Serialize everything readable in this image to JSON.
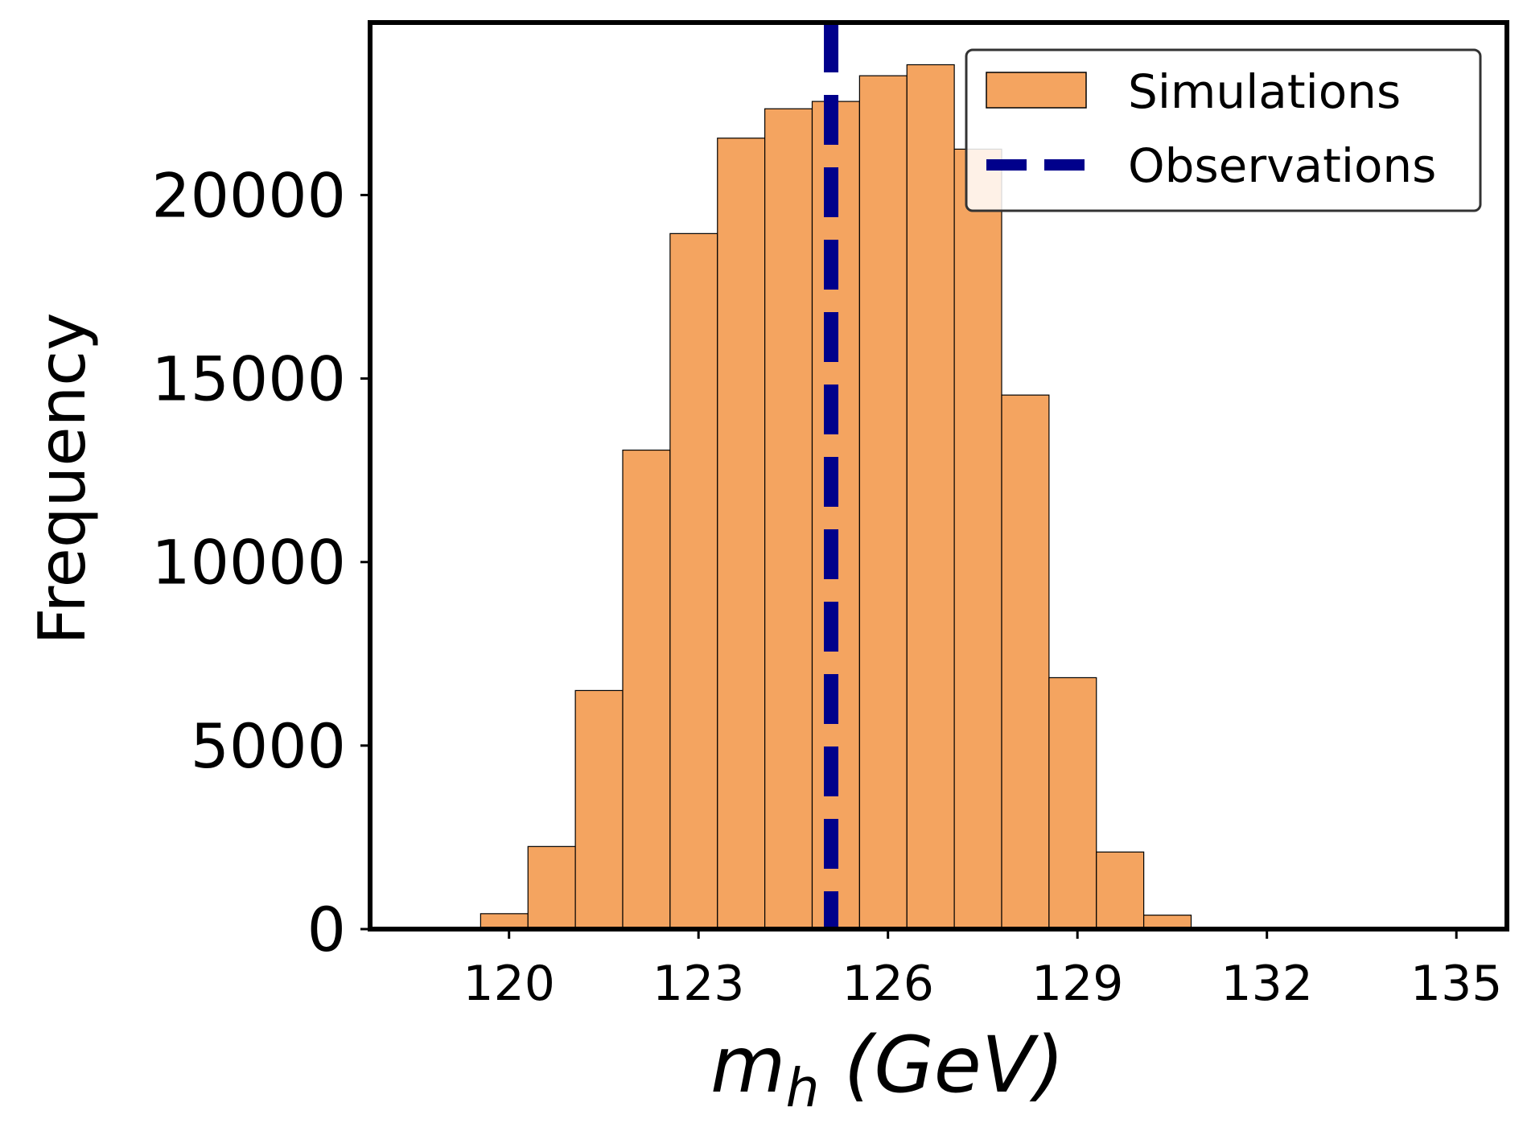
{
  "chart_data": {
    "type": "bar",
    "title": "",
    "xlabel": {
      "base": "m",
      "sub": "h",
      "rest": " (GeV)"
    },
    "ylabel": "Frequency",
    "xlim": [
      117.8,
      135.8
    ],
    "ylim": [
      0,
      24700
    ],
    "xticks": [
      120,
      123,
      126,
      129,
      132,
      135
    ],
    "yticks": [
      0,
      5000,
      10000,
      15000,
      20000
    ],
    "bin_edges": [
      119.55,
      120.3,
      121.05,
      121.8,
      122.55,
      123.3,
      124.05,
      124.8,
      125.55,
      126.3,
      127.05,
      127.8,
      128.55,
      129.3,
      130.05,
      130.8
    ],
    "values": [
      420,
      2250,
      6500,
      13050,
      18950,
      21550,
      22350,
      22550,
      23250,
      23550,
      21250,
      14550,
      6850,
      2100,
      380
    ],
    "bar_color": "#f4a460",
    "observation": {
      "name": "Observations",
      "x": 125.1,
      "color": "#00008b",
      "style": "dashed"
    },
    "legend": {
      "position": "top-right",
      "entries": [
        {
          "label": "Simulations",
          "kind": "patch"
        },
        {
          "label": "Observations",
          "kind": "line"
        }
      ]
    },
    "grid": false
  }
}
